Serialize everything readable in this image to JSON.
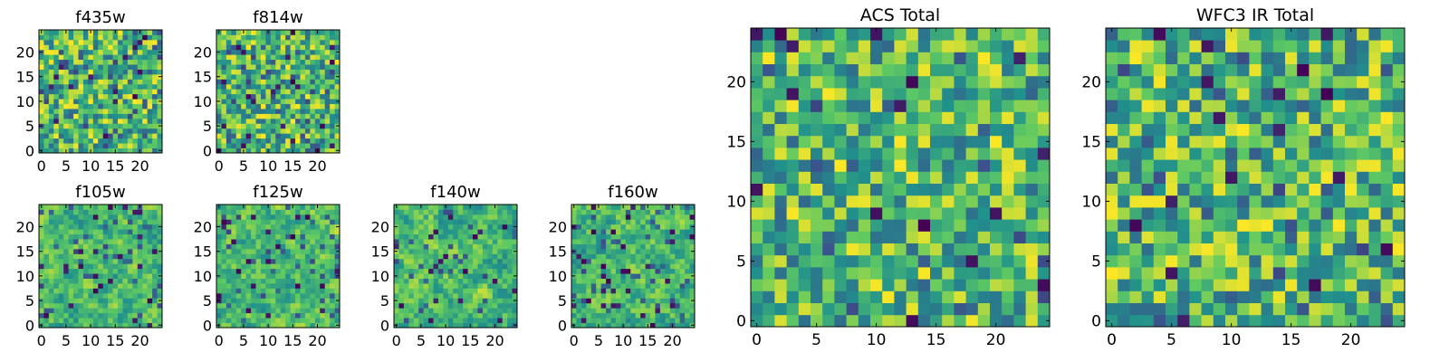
{
  "palette": [
    "#440154",
    "#3b528b",
    "#21918c",
    "#5ec962",
    "#fde725"
  ],
  "chart_data": [
    {
      "type": "heatmap",
      "title": "f435w",
      "grid": false,
      "xlim": [
        0,
        25
      ],
      "ylim": [
        0,
        25
      ],
      "xticks": [
        "0",
        "5",
        "10",
        "15",
        "20"
      ],
      "yticks": [
        "0",
        "5",
        "10",
        "15",
        "20"
      ],
      "seed": 11,
      "texture": "fine",
      "cmap": "viridis"
    },
    {
      "type": "heatmap",
      "title": "f814w",
      "grid": false,
      "xlim": [
        0,
        25
      ],
      "ylim": [
        0,
        25
      ],
      "xticks": [
        "0",
        "5",
        "10",
        "15",
        "20"
      ],
      "yticks": [
        "0",
        "5",
        "10",
        "15",
        "20"
      ],
      "seed": 23,
      "texture": "fine",
      "cmap": "viridis"
    },
    {
      "type": "heatmap",
      "title": "f105w",
      "grid": false,
      "xlim": [
        0,
        25
      ],
      "ylim": [
        0,
        25
      ],
      "xticks": [
        "0",
        "5",
        "10",
        "15",
        "20"
      ],
      "yticks": [
        "0",
        "5",
        "10",
        "15",
        "20"
      ],
      "seed": 37,
      "texture": "smooth",
      "cmap": "viridis"
    },
    {
      "type": "heatmap",
      "title": "f125w",
      "grid": false,
      "xlim": [
        0,
        25
      ],
      "ylim": [
        0,
        25
      ],
      "xticks": [
        "0",
        "5",
        "10",
        "15",
        "20"
      ],
      "yticks": [
        "0",
        "5",
        "10",
        "15",
        "20"
      ],
      "seed": 41,
      "texture": "smooth",
      "cmap": "viridis"
    },
    {
      "type": "heatmap",
      "title": "f140w",
      "grid": false,
      "xlim": [
        0,
        25
      ],
      "ylim": [
        0,
        25
      ],
      "xticks": [
        "0",
        "5",
        "10",
        "15",
        "20"
      ],
      "yticks": [
        "0",
        "5",
        "10",
        "15",
        "20"
      ],
      "seed": 53,
      "texture": "smooth",
      "cmap": "viridis"
    },
    {
      "type": "heatmap",
      "title": "f160w",
      "grid": false,
      "xlim": [
        0,
        25
      ],
      "ylim": [
        0,
        25
      ],
      "xticks": [
        "0",
        "5",
        "10",
        "15",
        "20"
      ],
      "yticks": [
        "0",
        "5",
        "10",
        "15",
        "20"
      ],
      "seed": 67,
      "texture": "smooth",
      "cmap": "viridis"
    },
    {
      "type": "heatmap",
      "title": "ACS Total",
      "grid": false,
      "xlim": [
        0,
        25
      ],
      "ylim": [
        0,
        25
      ],
      "xticks": [
        "0",
        "5",
        "10",
        "15",
        "20"
      ],
      "yticks": [
        "0",
        "5",
        "10",
        "15",
        "20"
      ],
      "seed": 79,
      "texture": "fine",
      "cmap": "viridis"
    },
    {
      "type": "heatmap",
      "title": "WFC3 IR Total",
      "grid": false,
      "xlim": [
        0,
        25
      ],
      "ylim": [
        0,
        25
      ],
      "xticks": [
        "0",
        "5",
        "10",
        "15",
        "20"
      ],
      "yticks": [
        "0",
        "5",
        "10",
        "15",
        "20"
      ],
      "seed": 97,
      "texture": "fine",
      "cmap": "viridis"
    }
  ]
}
